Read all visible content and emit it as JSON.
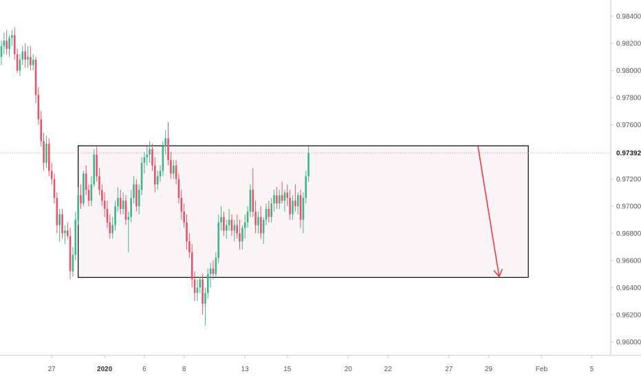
{
  "colors": {
    "up": "#3eb489",
    "down": "#e35568",
    "box_fill": "#fbf4f6",
    "box_stroke": "#000000",
    "arrow": "#e63c3c",
    "current_line": "#e89aa4",
    "axis": "#c7c7c7"
  },
  "chart_data": {
    "type": "candlestick",
    "price_axis": {
      "ticks": [
        "0.96000",
        "0.96200",
        "0.96400",
        "0.96600",
        "0.96800",
        "0.97000",
        "0.97200",
        "0.97392",
        "0.97600",
        "0.97800",
        "0.98000",
        "0.98200",
        "0.98400"
      ],
      "range": [
        0.959,
        0.9852
      ]
    },
    "time_axis": {
      "labels": [
        {
          "text": "27",
          "bar": 19,
          "bold": false
        },
        {
          "text": "2020",
          "bar": 39,
          "bold": true
        },
        {
          "text": "6",
          "bar": 54,
          "bold": false
        },
        {
          "text": "8",
          "bar": 69,
          "bold": false
        },
        {
          "text": "13",
          "bar": 92,
          "bold": false
        },
        {
          "text": "15",
          "bar": 108,
          "bold": false
        },
        {
          "text": "20",
          "bar": 131,
          "bold": false
        },
        {
          "text": "22",
          "bar": 146,
          "bold": false
        },
        {
          "text": "27",
          "bar": 169,
          "bold": false
        },
        {
          "text": "29",
          "bar": 184,
          "bold": false
        },
        {
          "text": "Feb",
          "bar": 204,
          "bold": false
        },
        {
          "text": "5",
          "bar": 223,
          "bold": false
        }
      ]
    },
    "current_price": "0.97392",
    "candles": [
      [
        0.981,
        0.9822,
        0.9804,
        0.9818
      ],
      [
        0.9818,
        0.9828,
        0.9812,
        0.9822
      ],
      [
        0.9822,
        0.983,
        0.9812,
        0.9816
      ],
      [
        0.9816,
        0.9826,
        0.981,
        0.9824
      ],
      [
        0.9824,
        0.983,
        0.9818,
        0.9826
      ],
      [
        0.9826,
        0.9832,
        0.9808,
        0.9812
      ],
      [
        0.9812,
        0.9816,
        0.9798,
        0.98
      ],
      [
        0.98,
        0.9812,
        0.9796,
        0.9808
      ],
      [
        0.9808,
        0.9818,
        0.9804,
        0.9814
      ],
      [
        0.9814,
        0.982,
        0.9802,
        0.9808
      ],
      [
        0.9808,
        0.9818,
        0.9802,
        0.981
      ],
      [
        0.981,
        0.9818,
        0.98,
        0.9804
      ],
      [
        0.9804,
        0.9812,
        0.98,
        0.9808
      ],
      [
        0.9808,
        0.981,
        0.9776,
        0.9782
      ],
      [
        0.9782,
        0.9788,
        0.976,
        0.9764
      ],
      [
        0.9764,
        0.977,
        0.9744,
        0.9748
      ],
      [
        0.9748,
        0.9754,
        0.9726,
        0.9732
      ],
      [
        0.9732,
        0.9752,
        0.9728,
        0.9746
      ],
      [
        0.9746,
        0.975,
        0.9722,
        0.9726
      ],
      [
        0.9726,
        0.9732,
        0.9716,
        0.972
      ],
      [
        0.972,
        0.9724,
        0.9702,
        0.9706
      ],
      [
        0.9706,
        0.971,
        0.968,
        0.9686
      ],
      [
        0.9686,
        0.9698,
        0.9674,
        0.9694
      ],
      [
        0.9694,
        0.9698,
        0.9676,
        0.968
      ],
      [
        0.968,
        0.9686,
        0.9672,
        0.9682
      ],
      [
        0.9682,
        0.9688,
        0.9676,
        0.9678
      ],
      [
        0.9678,
        0.9684,
        0.9646,
        0.9652
      ],
      [
        0.9652,
        0.967,
        0.9648,
        0.9664
      ],
      [
        0.9664,
        0.9696,
        0.966,
        0.969
      ],
      [
        0.969,
        0.9714,
        0.9686,
        0.9708
      ],
      [
        0.9708,
        0.9716,
        0.9698,
        0.9702
      ],
      [
        0.9702,
        0.9726,
        0.97,
        0.9724
      ],
      [
        0.9724,
        0.973,
        0.9708,
        0.9712
      ],
      [
        0.9712,
        0.9716,
        0.97,
        0.9704
      ],
      [
        0.9704,
        0.9722,
        0.97,
        0.9716
      ],
      [
        0.9716,
        0.9742,
        0.9714,
        0.9738
      ],
      [
        0.9738,
        0.9744,
        0.9718,
        0.9722
      ],
      [
        0.9722,
        0.9728,
        0.9708,
        0.9712
      ],
      [
        0.9712,
        0.9716,
        0.97,
        0.9704
      ],
      [
        0.9704,
        0.971,
        0.9692,
        0.9698
      ],
      [
        0.9698,
        0.9704,
        0.9684,
        0.9688
      ],
      [
        0.9688,
        0.9694,
        0.9676,
        0.968
      ],
      [
        0.968,
        0.9692,
        0.9676,
        0.9686
      ],
      [
        0.9686,
        0.9704,
        0.9682,
        0.97
      ],
      [
        0.97,
        0.9714,
        0.9696,
        0.9706
      ],
      [
        0.9706,
        0.9712,
        0.9694,
        0.9698
      ],
      [
        0.9698,
        0.971,
        0.9694,
        0.9704
      ],
      [
        0.9704,
        0.9708,
        0.9686,
        0.969
      ],
      [
        0.969,
        0.9696,
        0.9666,
        0.9692
      ],
      [
        0.9692,
        0.9712,
        0.9688,
        0.9706
      ],
      [
        0.9706,
        0.9722,
        0.9702,
        0.9716
      ],
      [
        0.9716,
        0.972,
        0.9696,
        0.97
      ],
      [
        0.97,
        0.9716,
        0.9694,
        0.9712
      ],
      [
        0.9712,
        0.9736,
        0.9708,
        0.9732
      ],
      [
        0.9732,
        0.974,
        0.9724,
        0.9736
      ],
      [
        0.9736,
        0.9744,
        0.973,
        0.9738
      ],
      [
        0.9738,
        0.9748,
        0.9732,
        0.9742
      ],
      [
        0.9742,
        0.9746,
        0.9726,
        0.973
      ],
      [
        0.973,
        0.9736,
        0.971,
        0.9716
      ],
      [
        0.9716,
        0.9726,
        0.9712,
        0.9722
      ],
      [
        0.9722,
        0.973,
        0.9718,
        0.9726
      ],
      [
        0.9726,
        0.9748,
        0.9722,
        0.9744
      ],
      [
        0.9744,
        0.9756,
        0.9738,
        0.975
      ],
      [
        0.975,
        0.9762,
        0.973,
        0.9734
      ],
      [
        0.9734,
        0.974,
        0.972,
        0.9724
      ],
      [
        0.9724,
        0.9734,
        0.972,
        0.973
      ],
      [
        0.973,
        0.9734,
        0.9716,
        0.972
      ],
      [
        0.972,
        0.9724,
        0.9702,
        0.9706
      ],
      [
        0.9706,
        0.9712,
        0.969,
        0.9696
      ],
      [
        0.9696,
        0.9702,
        0.9684,
        0.9688
      ],
      [
        0.9688,
        0.9694,
        0.9668,
        0.9674
      ],
      [
        0.9674,
        0.968,
        0.9662,
        0.9666
      ],
      [
        0.9666,
        0.9672,
        0.964,
        0.9646
      ],
      [
        0.9646,
        0.9652,
        0.963,
        0.9636
      ],
      [
        0.9636,
        0.9646,
        0.963,
        0.964
      ],
      [
        0.964,
        0.9648,
        0.9636,
        0.9646
      ],
      [
        0.9646,
        0.965,
        0.962,
        0.9628
      ],
      [
        0.9628,
        0.964,
        0.9612,
        0.9636
      ],
      [
        0.9636,
        0.9654,
        0.9632,
        0.965
      ],
      [
        0.965,
        0.9658,
        0.964,
        0.9654
      ],
      [
        0.9654,
        0.966,
        0.9646,
        0.965
      ],
      [
        0.965,
        0.9666,
        0.9648,
        0.9662
      ],
      [
        0.9662,
        0.9694,
        0.9658,
        0.9688
      ],
      [
        0.9688,
        0.97,
        0.9682,
        0.9692
      ],
      [
        0.9692,
        0.9696,
        0.9678,
        0.9682
      ],
      [
        0.9682,
        0.969,
        0.9676,
        0.9686
      ],
      [
        0.9686,
        0.9698,
        0.9682,
        0.969
      ],
      [
        0.969,
        0.9694,
        0.9678,
        0.9682
      ],
      [
        0.9682,
        0.969,
        0.9674,
        0.9686
      ],
      [
        0.9686,
        0.9694,
        0.9676,
        0.968
      ],
      [
        0.968,
        0.969,
        0.9668,
        0.9674
      ],
      [
        0.9674,
        0.9686,
        0.9668,
        0.9684
      ],
      [
        0.9684,
        0.9694,
        0.9676,
        0.9688
      ],
      [
        0.9688,
        0.97,
        0.9684,
        0.9696
      ],
      [
        0.9696,
        0.9716,
        0.9692,
        0.9712
      ],
      [
        0.9712,
        0.9728,
        0.9692,
        0.9696
      ],
      [
        0.9696,
        0.9704,
        0.968,
        0.9686
      ],
      [
        0.9686,
        0.9696,
        0.968,
        0.9692
      ],
      [
        0.9692,
        0.97,
        0.9676,
        0.968
      ],
      [
        0.968,
        0.9692,
        0.9672,
        0.969
      ],
      [
        0.969,
        0.9702,
        0.9686,
        0.9698
      ],
      [
        0.9698,
        0.9704,
        0.9688,
        0.9692
      ],
      [
        0.9692,
        0.9706,
        0.9688,
        0.9702
      ],
      [
        0.9702,
        0.9712,
        0.9696,
        0.9708
      ],
      [
        0.9708,
        0.9714,
        0.9698,
        0.9702
      ],
      [
        0.9702,
        0.9712,
        0.9698,
        0.9708
      ],
      [
        0.9708,
        0.9718,
        0.9702,
        0.9704
      ],
      [
        0.9704,
        0.9712,
        0.9696,
        0.971
      ],
      [
        0.971,
        0.9716,
        0.97,
        0.9706
      ],
      [
        0.9706,
        0.9712,
        0.969,
        0.9694
      ],
      [
        0.9694,
        0.9708,
        0.969,
        0.9704
      ],
      [
        0.9704,
        0.9716,
        0.9696,
        0.97
      ],
      [
        0.97,
        0.971,
        0.9694,
        0.9708
      ],
      [
        0.9708,
        0.9712,
        0.9684,
        0.969
      ],
      [
        0.969,
        0.971,
        0.968,
        0.9706
      ],
      [
        0.9706,
        0.9726,
        0.9702,
        0.9722
      ],
      [
        0.9722,
        0.9744,
        0.9718,
        0.9739
      ]
    ],
    "range_box": {
      "start_bar": 29,
      "end_bar": 199,
      "top": 0.97445,
      "bottom": 0.96475
    },
    "arrow": {
      "from_bar": 180,
      "from_price": 0.9744,
      "to_bar": 188,
      "to_price": 0.9648
    }
  }
}
